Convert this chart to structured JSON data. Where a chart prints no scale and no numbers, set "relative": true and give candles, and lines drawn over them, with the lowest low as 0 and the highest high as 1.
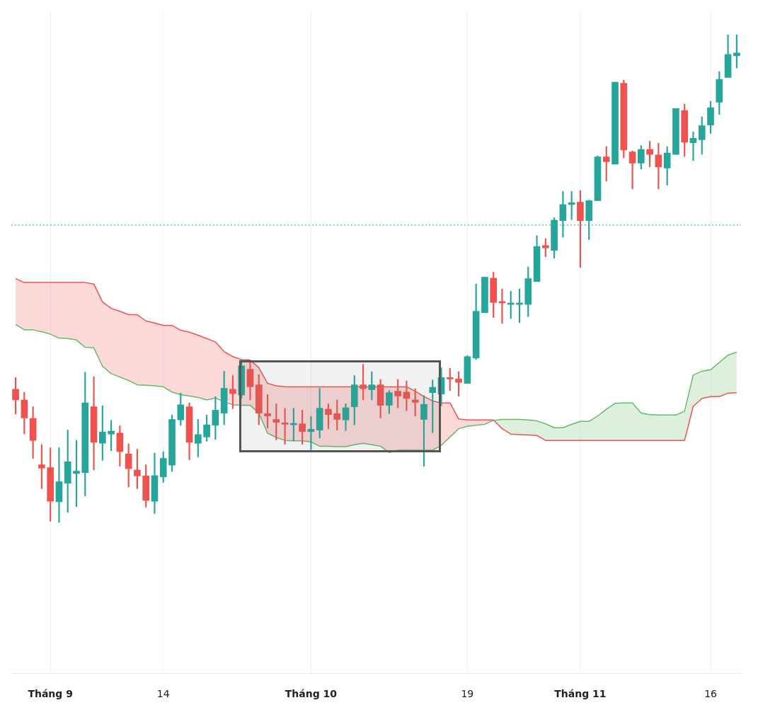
{
  "chart_data": {
    "type": "candlestick",
    "relative": true,
    "grid": "x",
    "categories": [
      null,
      null,
      null,
      null,
      "Tháng 9",
      null,
      null,
      null,
      null,
      null,
      null,
      null,
      null,
      null,
      null,
      null,
      null,
      "14",
      null,
      null,
      null,
      null,
      null,
      null,
      null,
      null,
      null,
      null,
      null,
      null,
      null,
      null,
      null,
      null,
      "Tháng 10",
      null,
      null,
      null,
      null,
      null,
      null,
      null,
      null,
      null,
      null,
      null,
      null,
      null,
      null,
      null,
      null,
      null,
      "19",
      null,
      null,
      null,
      null,
      null,
      null,
      null,
      null,
      null,
      null,
      null,
      null,
      "Tháng 11",
      null,
      null,
      null,
      null,
      null,
      null,
      null,
      null,
      null,
      null,
      null,
      null,
      null,
      null,
      "16",
      null,
      null,
      null
    ],
    "ohlc": [
      [
        0.273,
        0.297,
        0.222,
        0.251
      ],
      [
        0.251,
        0.267,
        0.181,
        0.214
      ],
      [
        0.213,
        0.237,
        0.131,
        0.168
      ],
      [
        0.118,
        0.159,
        0.069,
        0.111
      ],
      [
        0.112,
        0.153,
        0.002,
        0.043
      ],
      [
        0.042,
        0.153,
        0,
        0.083
      ],
      [
        0.08,
        0.189,
        0.02,
        0.124
      ],
      [
        0.1,
        0.168,
        0.032,
        0.105
      ],
      [
        0.102,
        0.308,
        0.054,
        0.245
      ],
      [
        0.237,
        0.299,
        0.107,
        0.164
      ],
      [
        0.162,
        0.239,
        0.127,
        0.185
      ],
      [
        0.181,
        0.209,
        0.147,
        0.187
      ],
      [
        0.183,
        0.198,
        0.115,
        0.145
      ],
      [
        0.14,
        0.161,
        0.072,
        0.11
      ],
      [
        0.107,
        0.15,
        0.069,
        0.095
      ],
      [
        0.095,
        0.118,
        0.031,
        0.045
      ],
      [
        0.043,
        0.142,
        0.018,
        0.096
      ],
      [
        0.093,
        0.145,
        0.082,
        0.131
      ],
      [
        0.117,
        0.22,
        0.104,
        0.211
      ],
      [
        0.21,
        0.265,
        0.199,
        0.241
      ],
      [
        0.237,
        0.245,
        0.128,
        0.164
      ],
      [
        0.162,
        0.211,
        0.134,
        0.18
      ],
      [
        0.175,
        0.22,
        0.166,
        0.2
      ],
      [
        0.199,
        0.258,
        0.17,
        0.23
      ],
      [
        0.224,
        0.31,
        0.2,
        0.275
      ],
      [
        0.273,
        0.301,
        0.233,
        0.264
      ],
      [
        0.261,
        0.334,
        0.255,
        0.321
      ],
      [
        0.314,
        0.332,
        0.251,
        0.278
      ],
      [
        0.282,
        0.303,
        0.2,
        0.224
      ],
      [
        0.223,
        0.262,
        0.193,
        0.218
      ],
      [
        0.211,
        0.243,
        0.169,
        0.205
      ],
      [
        0.204,
        0.234,
        0.16,
        0.201
      ],
      [
        0.2,
        0.234,
        0.167,
        0.203
      ],
      [
        0.202,
        0.23,
        0.16,
        0.186
      ],
      [
        0.186,
        0.217,
        0.149,
        0.191
      ],
      [
        0.189,
        0.275,
        0.173,
        0.234
      ],
      [
        0.232,
        0.243,
        0.192,
        0.221
      ],
      [
        0.223,
        0.251,
        0.189,
        0.211
      ],
      [
        0.21,
        0.243,
        0.188,
        0.235
      ],
      [
        0.237,
        0.301,
        0.2,
        0.282
      ],
      [
        0.282,
        0.324,
        0.251,
        0.274
      ],
      [
        0.272,
        0.309,
        0.251,
        0.282
      ],
      [
        0.282,
        0.293,
        0.214,
        0.24
      ],
      [
        0.24,
        0.27,
        0.223,
        0.266
      ],
      [
        0.269,
        0.293,
        0.235,
        0.259
      ],
      [
        0.267,
        0.29,
        0.229,
        0.254
      ],
      [
        0.251,
        0.274,
        0.218,
        0.246
      ],
      [
        0.211,
        0.26,
        0.115,
        0.242
      ],
      [
        0.266,
        0.292,
        0.184,
        0.277
      ],
      [
        0.263,
        0.317,
        0.239,
        0.297
      ],
      [
        0.296,
        0.316,
        0.27,
        0.294
      ],
      [
        0.294,
        0.309,
        0.259,
        0.287
      ],
      [
        0.285,
        0.342,
        0.285,
        0.34
      ],
      [
        0.337,
        0.489,
        0.334,
        0.433
      ],
      [
        0.43,
        0.503,
        0.43,
        0.503
      ],
      [
        0.501,
        0.513,
        0.42,
        0.451
      ],
      [
        0.453,
        0.479,
        0.408,
        0.45
      ],
      [
        0.447,
        0.474,
        0.418,
        0.45
      ],
      [
        0.447,
        0.479,
        0.41,
        0.45
      ],
      [
        0.447,
        0.524,
        0.422,
        0.5
      ],
      [
        0.494,
        0.588,
        0.494,
        0.566
      ],
      [
        0.568,
        0.582,
        0.545,
        0.563
      ],
      [
        0.558,
        0.625,
        0.542,
        0.62
      ],
      [
        0.619,
        0.679,
        0.585,
        0.652
      ],
      [
        0.652,
        0.679,
        0.621,
        0.656
      ],
      [
        0.657,
        0.681,
        0.523,
        0.619
      ],
      [
        0.619,
        0.661,
        0.58,
        0.66
      ],
      [
        0.66,
        0.752,
        0.66,
        0.75
      ],
      [
        0.75,
        0.771,
        0.7,
        0.74
      ],
      [
        0.735,
        0.903,
        0.735,
        0.903
      ],
      [
        0.901,
        0.907,
        0.748,
        0.764
      ],
      [
        0.76,
        0.762,
        0.684,
        0.737
      ],
      [
        0.737,
        0.773,
        0.725,
        0.765
      ],
      [
        0.765,
        0.782,
        0.729,
        0.755
      ],
      [
        0.754,
        0.778,
        0.684,
        0.729
      ],
      [
        0.727,
        0.771,
        0.692,
        0.758
      ],
      [
        0.755,
        0.849,
        0.755,
        0.849
      ],
      [
        0.845,
        0.858,
        0.751,
        0.78
      ],
      [
        0.779,
        0.801,
        0.742,
        0.788
      ],
      [
        0.785,
        0.832,
        0.755,
        0.814
      ],
      [
        0.815,
        0.864,
        0.798,
        0.851
      ],
      [
        0.862,
        0.925,
        0.837,
        0.909
      ],
      [
        0.913,
        1,
        0.913,
        0.96
      ],
      [
        0.957,
        1,
        0.932,
        0.963
      ]
    ],
    "colors": [
      "#ef5350",
      "#ef5350",
      "#ef5350",
      "#ef5350",
      "#ef5350",
      "#26a69a",
      "#26a69a",
      "#26a69a",
      "#26a69a",
      "#ef5350",
      "#26a69a",
      "#26a69a",
      "#ef5350",
      "#ef5350",
      "#ef5350",
      "#ef5350",
      "#26a69a",
      "#26a69a",
      "#26a69a",
      "#26a69a",
      "#ef5350",
      "#26a69a",
      "#26a69a",
      "#26a69a",
      "#26a69a",
      "#ef5350",
      "#26a69a",
      "#ef5350",
      "#ef5350",
      "#ef5350",
      "#ef5350",
      "#ef5350",
      "#26a69a",
      "#ef5350",
      "#26a69a",
      "#26a69a",
      "#ef5350",
      "#ef5350",
      "#26a69a",
      "#26a69a",
      "#ef5350",
      "#26a69a",
      "#ef5350",
      "#26a69a",
      "#ef5350",
      "#ef5350",
      "#ef5350",
      "#26a69a",
      "#26a69a",
      "#26a69a",
      "#ef5350",
      "#ef5350",
      "#26a69a",
      "#26a69a",
      "#26a69a",
      "#ef5350",
      "#ef5350",
      "#26a69a",
      "#26a69a",
      "#26a69a",
      "#26a69a",
      "#ef5350",
      "#26a69a",
      "#26a69a",
      "#26a69a",
      "#ef5350",
      "#26a69a",
      "#26a69a",
      "#ef5350",
      "#26a69a",
      "#ef5350",
      "#ef5350",
      "#26a69a",
      "#ef5350",
      "#ef5350",
      "#26a69a",
      "#26a69a",
      "#ef5350",
      "#26a69a",
      "#26a69a",
      "#26a69a",
      "#26a69a",
      "#26a69a",
      "#26a69a"
    ],
    "series": [
      {
        "type": "line",
        "color": "#66bb6a",
        "lower": [
          null,
          null,
          null,
          null,
          null,
          null,
          null,
          null,
          null,
          null,
          null,
          null,
          null,
          null,
          null,
          null,
          null,
          null,
          null,
          null,
          null,
          null,
          null,
          null,
          null,
          null,
          null,
          null,
          null,
          null,
          null,
          null,
          null,
          null,
          null,
          null,
          null,
          null,
          null,
          null,
          null,
          null,
          null,
          null,
          null,
          null,
          null,
          null,
          null,
          null,
          null,
          null,
          null,
          null,
          null,
          0.21,
          0.192,
          0.181,
          0.18,
          0.179,
          0.178,
          0.168,
          0.168,
          0.168,
          0.168,
          0.168,
          0.168,
          0.168,
          0.168,
          0.168,
          0.168,
          0.168,
          0.168,
          0.168,
          0.168,
          0.168,
          0.168,
          0.168,
          0.238,
          0.254,
          0.258,
          0.258,
          0.265,
          0.266
        ],
        "upper": [
          null,
          null,
          null,
          null,
          null,
          null,
          null,
          null,
          null,
          null,
          null,
          null,
          null,
          null,
          null,
          null,
          null,
          null,
          null,
          null,
          null,
          null,
          null,
          null,
          null,
          null,
          null,
          null,
          null,
          null,
          null,
          null,
          null,
          null,
          null,
          null,
          null,
          null,
          null,
          null,
          null,
          null,
          null,
          null,
          null,
          null,
          null,
          null,
          null,
          null,
          null,
          null,
          null,
          null,
          null,
          0.209,
          0.211,
          0.211,
          0.211,
          0.21,
          0.208,
          0.202,
          0.194,
          0.194,
          0.201,
          0.207,
          0.207,
          0.218,
          0.232,
          0.244,
          0.245,
          0.245,
          0.224,
          0.221,
          0.22,
          0.22,
          0.22,
          0.228,
          0.302,
          0.31,
          0.313,
          0.328,
          0.343,
          0.349
        ],
        "values": [
          0.406,
          0.395,
          0.395,
          0.391,
          0.386,
          0.378,
          0.377,
          0.374,
          0.359,
          0.358,
          0.32,
          0.305,
          0.298,
          0.291,
          0.282,
          0.281,
          0.28,
          0.278,
          0.267,
          0.262,
          0.259,
          0.256,
          0.251,
          0.255,
          null,
          0.241,
          0.24,
          0.24,
          0.224,
          0.183,
          0.174,
          0.168,
          0.167,
          0.167,
          0.165,
          0.156,
          0.156,
          0.155,
          0.155,
          0.159,
          0.162,
          0.159,
          0.156,
          0.143,
          0.148,
          0.148,
          0.148,
          0.148,
          0.148,
          0.158,
          0.175,
          0.192,
          0.197,
          0.199,
          0.201,
          0.209,
          0.211,
          0.211,
          0.211,
          0.21,
          0.208,
          0.202,
          0.194,
          0.194,
          0.201,
          0.207,
          0.207,
          0.218,
          0.232,
          0.244,
          0.245,
          0.245,
          0.224,
          0.221,
          0.22,
          0.22,
          0.22,
          0.228,
          0.302,
          0.31,
          0.313,
          0.328,
          0.343,
          0.349
        ]
      },
      {
        "type": "line",
        "color": "#ef5350",
        "lower": [
          0.406,
          0.395,
          0.395,
          0.391,
          0.386,
          0.378,
          0.377,
          0.374,
          0.359,
          0.358,
          0.32,
          0.305,
          0.298,
          0.291,
          0.282,
          0.281,
          0.28,
          0.278,
          0.267,
          0.262,
          0.259,
          0.256,
          0.251,
          0.255,
          0.255,
          0.241,
          0.24,
          0.24,
          0.224,
          0.183,
          0.174,
          0.168,
          0.167,
          0.167,
          0.165,
          0.156,
          0.156,
          0.155,
          0.155,
          0.159,
          0.162,
          0.159,
          0.156,
          0.143,
          0.148,
          0.148,
          0.148,
          0.148,
          0.148,
          0.158,
          0.175,
          0.192,
          0.197,
          0.199,
          0.201,
          0.209,
          null,
          null,
          null,
          null,
          null,
          null,
          null,
          null,
          null,
          null,
          null,
          null,
          null,
          null,
          null,
          null,
          null,
          null,
          null,
          null,
          null,
          null,
          null,
          null,
          null,
          null,
          null,
          null
        ],
        "upper": [
          0.5,
          0.492,
          0.492,
          0.492,
          0.492,
          0.492,
          0.492,
          0.492,
          0.492,
          0.489,
          0.452,
          0.439,
          0.433,
          0.426,
          0.426,
          0.413,
          0.409,
          0.404,
          0.404,
          0.394,
          0.39,
          0.384,
          0.377,
          0.37,
          0.35,
          0.34,
          0.334,
          0.333,
          0.317,
          0.285,
          0.28,
          0.278,
          0.278,
          0.278,
          0.278,
          0.278,
          0.278,
          0.278,
          0.278,
          0.278,
          0.278,
          0.278,
          0.278,
          0.278,
          0.278,
          0.278,
          0.269,
          0.258,
          0.249,
          0.245,
          0.245,
          0.212,
          0.21,
          0.21,
          0.21,
          0.21,
          null,
          null,
          null,
          null,
          null,
          null,
          null,
          null,
          null,
          null,
          null,
          null,
          null,
          null,
          null,
          null,
          null,
          null,
          null,
          null,
          null,
          null,
          null,
          null,
          null,
          null,
          null,
          null
        ],
        "values": [
          0.5,
          0.492,
          0.492,
          0.492,
          0.492,
          0.492,
          0.492,
          0.492,
          0.492,
          0.489,
          0.452,
          0.439,
          0.433,
          0.426,
          0.426,
          0.413,
          0.409,
          0.404,
          0.404,
          0.394,
          0.39,
          0.384,
          0.377,
          0.37,
          0.35,
          0.34,
          0.334,
          0.333,
          0.317,
          0.285,
          0.28,
          0.278,
          0.278,
          0.278,
          0.278,
          0.278,
          0.278,
          0.278,
          0.278,
          null,
          0.278,
          0.278,
          0.278,
          0.278,
          0.278,
          0.278,
          0.269,
          0.258,
          0.249,
          0.245,
          0.245,
          0.212,
          0.21,
          0.21,
          0.21,
          0.21,
          0.192,
          0.181,
          0.18,
          0.179,
          0.178,
          0.168,
          0.168,
          0.168,
          0.168,
          0.168,
          0.168,
          0.168,
          0.168,
          0.168,
          0.168,
          0.168,
          0.168,
          0.168,
          0.168,
          0.168,
          0.168,
          0.168,
          0.238,
          0.254,
          0.258,
          0.258,
          0.265,
          0.266
        ]
      }
    ],
    "ref_lines": [
      {
        "axis": "y",
        "value": 0.61,
        "color": "#26a69a",
        "line_style": "dotted"
      }
    ]
  }
}
